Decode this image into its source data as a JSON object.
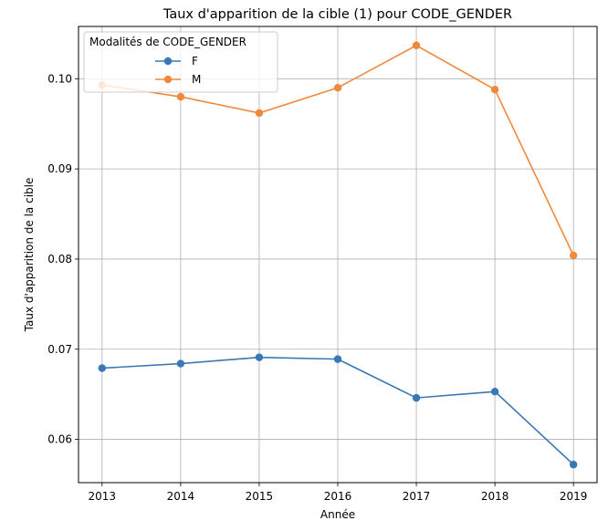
{
  "chart_data": {
    "type": "line",
    "title": "Taux d'apparition de la cible (1) pour CODE_GENDER",
    "xlabel": "Année",
    "ylabel": "Taux d'apparition de la cible",
    "x": [
      2013,
      2014,
      2015,
      2016,
      2017,
      2018,
      2019
    ],
    "x_tick_labels": [
      "2013",
      "2014",
      "2015",
      "2016",
      "2017",
      "2018",
      "2019"
    ],
    "y_ticks": [
      0.06,
      0.07,
      0.08,
      0.09,
      0.1
    ],
    "y_tick_labels": [
      "0.06",
      "0.07",
      "0.08",
      "0.09",
      "0.10"
    ],
    "xlim": [
      2012.7,
      2019.3
    ],
    "ylim": [
      0.0552,
      0.1058
    ],
    "grid": true,
    "legend": {
      "title": "Modalités de CODE_GENDER",
      "placement": "top-left"
    },
    "series": [
      {
        "name": "F",
        "color": "#3a78b4",
        "values": [
          0.0679,
          0.0684,
          0.0691,
          0.0689,
          0.0646,
          0.0653,
          0.0572
        ]
      },
      {
        "name": "M",
        "color": "#f1893c",
        "values": [
          0.0993,
          0.098,
          0.0962,
          0.099,
          0.1037,
          0.0988,
          0.0804
        ]
      }
    ]
  }
}
